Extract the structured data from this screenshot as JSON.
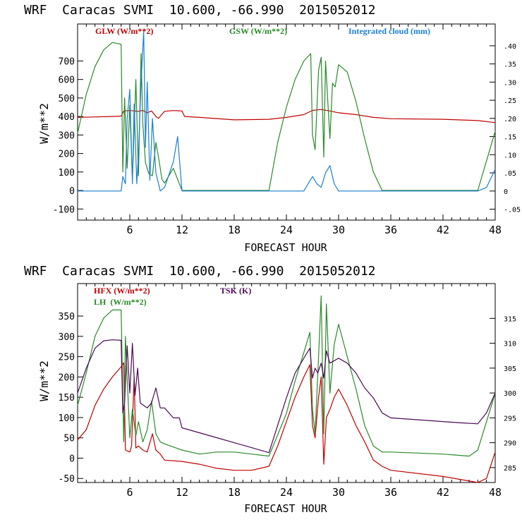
{
  "chart_data": [
    {
      "type": "line",
      "title": "WRF  Caracas SVMI  10.600, -66.990  2015052012",
      "xlabel": "FORECAST HOUR",
      "ylabel": "W/m**2",
      "xlim": [
        0,
        48
      ],
      "ylim": [
        -160,
        900
      ],
      "y2lim": [
        -0.08,
        0.46
      ],
      "xticks": [
        "6",
        "12",
        "18",
        "24",
        "30",
        "36",
        "42",
        "48"
      ],
      "yticks": [
        "-100",
        "0",
        "100",
        "200",
        "300",
        "400",
        "500",
        "600",
        "700"
      ],
      "y2ticks": [
        "-.05",
        "0",
        ".05",
        ".10",
        ".15",
        ".20",
        ".25",
        ".30",
        ".35",
        ".40"
      ],
      "legend": [
        "GLW (W/m**2)",
        "GSW (W/m**2)",
        "Integrated cloud (mm)"
      ],
      "colors": {
        "GLW": "#c00000",
        "GSW": "#2a8a2a",
        "cloud": "#1a7fd4"
      },
      "series": [
        {
          "name": "GLW (W/m**2)",
          "axis": "left",
          "x": [
            0,
            4,
            5,
            5.3,
            6,
            7,
            7.5,
            8,
            8.5,
            9,
            9.3,
            9.7,
            10,
            11,
            12,
            12.3,
            14,
            18,
            22,
            24,
            26,
            27,
            28,
            29,
            30,
            32,
            34,
            36,
            42,
            46,
            48
          ],
          "y": [
            395,
            400,
            402,
            430,
            432,
            428,
            433,
            420,
            430,
            400,
            390,
            412,
            428,
            432,
            430,
            400,
            395,
            382,
            385,
            395,
            410,
            433,
            438,
            430,
            420,
            410,
            395,
            388,
            385,
            378,
            367
          ]
        },
        {
          "name": "GSW (W/m**2)",
          "axis": "left",
          "x": [
            0,
            1,
            2,
            3,
            4,
            5,
            5.2,
            5.4,
            5.7,
            6,
            6.3,
            6.7,
            7,
            7.3,
            7.5,
            7.8,
            8.2,
            8.6,
            9,
            9.3,
            9.7,
            10,
            11,
            12,
            22,
            23,
            24,
            25,
            26,
            26.8,
            27,
            27.3,
            27.7,
            28,
            28.3,
            28.5,
            29,
            29.3,
            29.6,
            30,
            31,
            32,
            33,
            34,
            35,
            46,
            47,
            48
          ],
          "y": [
            310,
            520,
            670,
            760,
            800,
            790,
            100,
            500,
            120,
            460,
            60,
            600,
            80,
            740,
            360,
            150,
            90,
            80,
            260,
            180,
            60,
            40,
            120,
            0,
            0,
            260,
            450,
            600,
            700,
            740,
            300,
            220,
            650,
            720,
            180,
            700,
            280,
            580,
            560,
            680,
            640,
            480,
            280,
            100,
            0,
            0,
            160,
            320
          ]
        },
        {
          "name": "Integrated cloud (mm)",
          "axis": "right",
          "x": [
            0,
            5,
            5.2,
            5.5,
            5.7,
            6,
            6.3,
            6.5,
            6.8,
            7,
            7.3,
            7.6,
            7.8,
            8,
            8.3,
            8.6,
            9,
            9.5,
            10,
            11,
            11.5,
            12,
            26,
            26.5,
            27,
            27.5,
            28,
            28.5,
            29,
            29.5,
            30,
            30.5,
            46,
            47,
            48
          ],
          "y": [
            0,
            0,
            0.04,
            0.02,
            0.2,
            0.28,
            0.02,
            0.24,
            0.02,
            0.1,
            0.3,
            0.44,
            0.12,
            0.3,
            0.03,
            0.2,
            0.05,
            0.0,
            0.01,
            0.08,
            0.15,
            0.0,
            0,
            0.02,
            0.04,
            0.02,
            0.01,
            0.05,
            0.07,
            0.02,
            0.0,
            0.0,
            0.0,
            0.01,
            0.06
          ]
        }
      ]
    },
    {
      "type": "line",
      "title": "WRF  Caracas SVMI  10.600, -66.990  2015052012",
      "xlabel": "FORECAST HOUR",
      "ylabel": "W/m**2",
      "xlim": [
        0,
        48
      ],
      "ylim": [
        -60,
        430
      ],
      "y2lim": [
        282,
        322
      ],
      "xticks": [
        "6",
        "12",
        "18",
        "24",
        "30",
        "36",
        "42",
        "48"
      ],
      "yticks": [
        "-50",
        "0",
        "50",
        "100",
        "150",
        "200",
        "250",
        "300",
        "350"
      ],
      "y2ticks": [
        "285",
        "290",
        "295",
        "300",
        "305",
        "310",
        "315"
      ],
      "legend": [
        "HFX (W/m**2)",
        "LH  (W/m**2)",
        "TSK (K)"
      ],
      "colors": {
        "HFX": "#c00000",
        "LH": "#2a8a2a",
        "TSK": "#4b0a55"
      },
      "series": [
        {
          "name": "HFX (W/m**2)",
          "axis": "left",
          "x": [
            0,
            1,
            2,
            3,
            4,
            5,
            5.3,
            5.5,
            6,
            6.2,
            6.5,
            6.7,
            7,
            7.5,
            8,
            8.6,
            9,
            9.5,
            10,
            12,
            14,
            16,
            18,
            20,
            22,
            23,
            24,
            25,
            26,
            26.7,
            27,
            27.3,
            27.7,
            28,
            28.3,
            28.6,
            29,
            29.5,
            30,
            31,
            32,
            33,
            34,
            35,
            36,
            42,
            46,
            47,
            48
          ],
          "y": [
            45,
            70,
            130,
            170,
            200,
            225,
            235,
            20,
            15,
            30,
            200,
            25,
            30,
            20,
            15,
            60,
            20,
            10,
            -5,
            -8,
            -15,
            -25,
            -30,
            -30,
            -20,
            30,
            90,
            150,
            200,
            230,
            80,
            50,
            150,
            200,
            -15,
            100,
            120,
            150,
            170,
            130,
            80,
            40,
            -5,
            -20,
            -30,
            -45,
            -60,
            -50,
            15
          ]
        },
        {
          "name": "LH  (W/m**2)",
          "axis": "left",
          "x": [
            0,
            1,
            2,
            3,
            4,
            5,
            5.3,
            5.5,
            6,
            6.3,
            6.7,
            7,
            7.5,
            8,
            8.5,
            9,
            9.5,
            10,
            12,
            14,
            16,
            18,
            20,
            22,
            24,
            25,
            26,
            26.7,
            27,
            27.3,
            27.7,
            28,
            28.3,
            28.6,
            29,
            29.5,
            30,
            31,
            32,
            33,
            34,
            35,
            36,
            42,
            45,
            46,
            47,
            48
          ],
          "y": [
            130,
            210,
            300,
            345,
            365,
            365,
            40,
            300,
            50,
            120,
            55,
            90,
            40,
            70,
            140,
            60,
            40,
            35,
            20,
            10,
            15,
            15,
            10,
            5,
            110,
            190,
            260,
            310,
            120,
            60,
            250,
            400,
            60,
            380,
            160,
            280,
            330,
            250,
            170,
            80,
            30,
            15,
            15,
            10,
            5,
            20,
            90,
            160
          ]
        },
        {
          "name": "TSK (K)",
          "axis": "right",
          "x": [
            0,
            1,
            2,
            3,
            4,
            5,
            5.2,
            5.4,
            5.7,
            6,
            6.3,
            6.6,
            6.9,
            7.2,
            8,
            8.5,
            9,
            9.5,
            10,
            11,
            11.7,
            12,
            14,
            16,
            18,
            20,
            22,
            24,
            25,
            26,
            26.7,
            27,
            27.3,
            27.6,
            28,
            28.3,
            28.6,
            29,
            30,
            31,
            32,
            33,
            34,
            35,
            36,
            40,
            44,
            46,
            47,
            48
          ],
          "y": [
            300,
            305,
            309,
            310.5,
            310.7,
            310.6,
            296,
            298,
            309.5,
            300,
            310,
            299.5,
            305,
            298,
            297,
            298,
            301,
            297,
            297,
            295,
            295,
            293,
            292,
            291,
            290,
            289,
            288,
            299,
            304,
            307,
            309,
            303,
            305,
            304,
            306,
            303,
            308.5,
            306,
            307,
            306,
            304,
            301,
            299,
            296,
            295,
            294.5,
            294,
            293.8,
            296,
            300
          ]
        }
      ]
    }
  ]
}
